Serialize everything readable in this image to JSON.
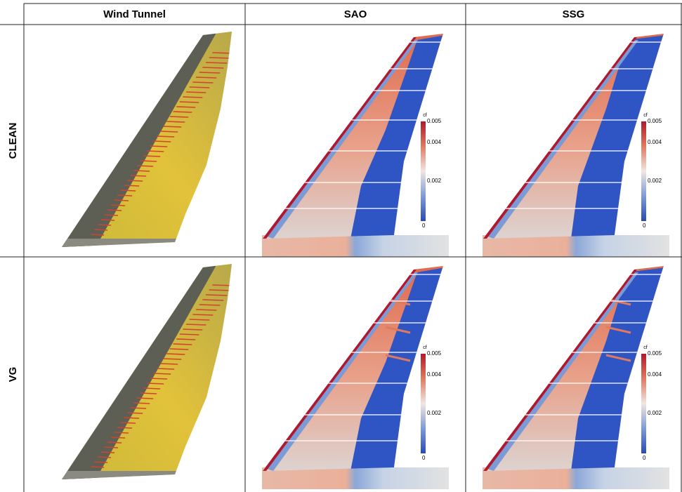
{
  "header": {
    "columns": [
      "Wind Tunnel",
      "SAO",
      "SSG"
    ]
  },
  "rows": [
    {
      "label": "CLEAN"
    },
    {
      "label": "VG"
    }
  ],
  "colorbar": {
    "title": "cf",
    "ticks": [
      "0.005",
      "0.004",
      "0.002",
      "0"
    ]
  }
}
